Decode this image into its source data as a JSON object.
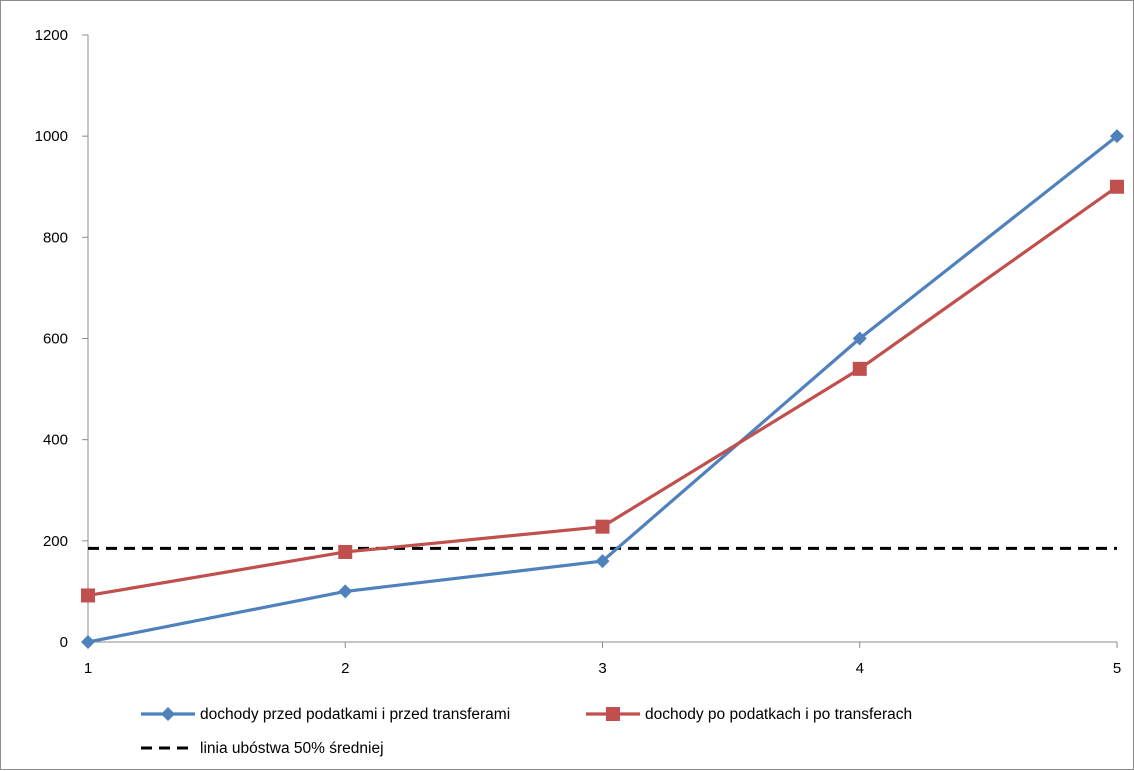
{
  "chart_data": {
    "type": "line",
    "title": "",
    "xlabel": "",
    "ylabel": "",
    "x": [
      1,
      2,
      3,
      4,
      5
    ],
    "x_tick_labels": [
      "1",
      "2",
      "3",
      "4",
      "5"
    ],
    "ylim": [
      0,
      1200
    ],
    "y_ticks": [
      0,
      200,
      400,
      600,
      800,
      1000,
      1200
    ],
    "y_tick_labels": [
      "0",
      "200",
      "400",
      "600",
      "800",
      "1000",
      "1200"
    ],
    "grid": false,
    "legend_position": "bottom",
    "series": [
      {
        "name": "dochody przed podatkami i przed transferami",
        "values": [
          0,
          100,
          160,
          600,
          1000
        ],
        "color": "#4F81BD",
        "marker": "diamond",
        "line_style": "solid"
      },
      {
        "name": "dochody po podatkach i po transferach",
        "values": [
          92,
          178,
          228,
          540,
          900
        ],
        "color": "#C0504D",
        "marker": "square",
        "line_style": "solid"
      },
      {
        "name": "linia ubóstwa 50% średniej",
        "values": [
          185,
          185,
          185,
          185,
          185
        ],
        "color": "#000000",
        "marker": "none",
        "line_style": "dashed"
      }
    ]
  }
}
